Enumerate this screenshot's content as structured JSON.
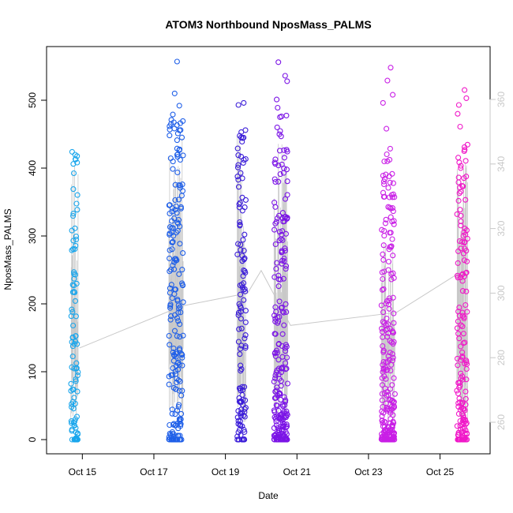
{
  "chart_data": {
    "type": "scatter",
    "title": "ATOM3 Northbound NposMass_PALMS",
    "xlabel": "Date",
    "ylabel": "NposMass_PALMS",
    "ylim": [
      0,
      560
    ],
    "y_ticks": [
      0,
      100,
      200,
      300,
      400,
      500
    ],
    "y2lim": [
      253,
      368
    ],
    "y2_ticks": [
      260,
      280,
      300,
      320,
      340,
      360
    ],
    "y2_color": "#c8c8c8",
    "xlim_days": [
      14.0,
      26.4
    ],
    "x_ticks": [
      {
        "value": 15,
        "label": "Oct 15"
      },
      {
        "value": 17,
        "label": "Oct 17"
      },
      {
        "value": 19,
        "label": "Oct 19"
      },
      {
        "value": 21,
        "label": "Oct 21"
      },
      {
        "value": 23,
        "label": "Oct 23"
      },
      {
        "value": 25,
        "label": "Oct 25"
      }
    ],
    "grid": false,
    "legend": "none",
    "flights": [
      {
        "center": 14.78,
        "width": 0.2,
        "color": "#1aa6ec",
        "n": 95,
        "ymax": 424,
        "bias": 2.4,
        "extremes": [
          424,
          333,
          237,
          228
        ]
      },
      {
        "center": 17.62,
        "width": 0.4,
        "color": "#1f5fe8",
        "n": 200,
        "ymax": 470,
        "bias": 1.1,
        "extremes": [
          557,
          510,
          492,
          479,
          471
        ]
      },
      {
        "center": 19.45,
        "width": 0.24,
        "color": "#3a1cd8",
        "n": 120,
        "ymax": 460,
        "bias": 1.3,
        "extremes": [
          496,
          493,
          453,
          429
        ]
      },
      {
        "center": 20.55,
        "width": 0.38,
        "color": "#7b14e6",
        "n": 230,
        "ymax": 480,
        "bias": 1.9,
        "extremes": [
          556,
          536,
          528,
          501,
          489,
          476
        ]
      },
      {
        "center": 23.55,
        "width": 0.38,
        "color": "#c91fe6",
        "n": 240,
        "ymax": 430,
        "bias": 1.9,
        "extremes": [
          548,
          529,
          508,
          496,
          458
        ]
      },
      {
        "center": 25.62,
        "width": 0.3,
        "color": "#f018c8",
        "n": 160,
        "ymax": 440,
        "bias": 1.5,
        "extremes": [
          515,
          503,
          493,
          480,
          461
        ]
      }
    ],
    "altitude_series": {
      "color": "#c8c8c8",
      "connector_points": [
        [
          14.92,
          283
        ],
        [
          17.78,
          296
        ],
        [
          19.62,
          300
        ],
        [
          20.0,
          307
        ],
        [
          20.82,
          290
        ],
        [
          23.78,
          294
        ],
        [
          25.5,
          306
        ]
      ],
      "spike_max": [
        340,
        348,
        350,
        347,
        318,
        342
      ]
    }
  }
}
